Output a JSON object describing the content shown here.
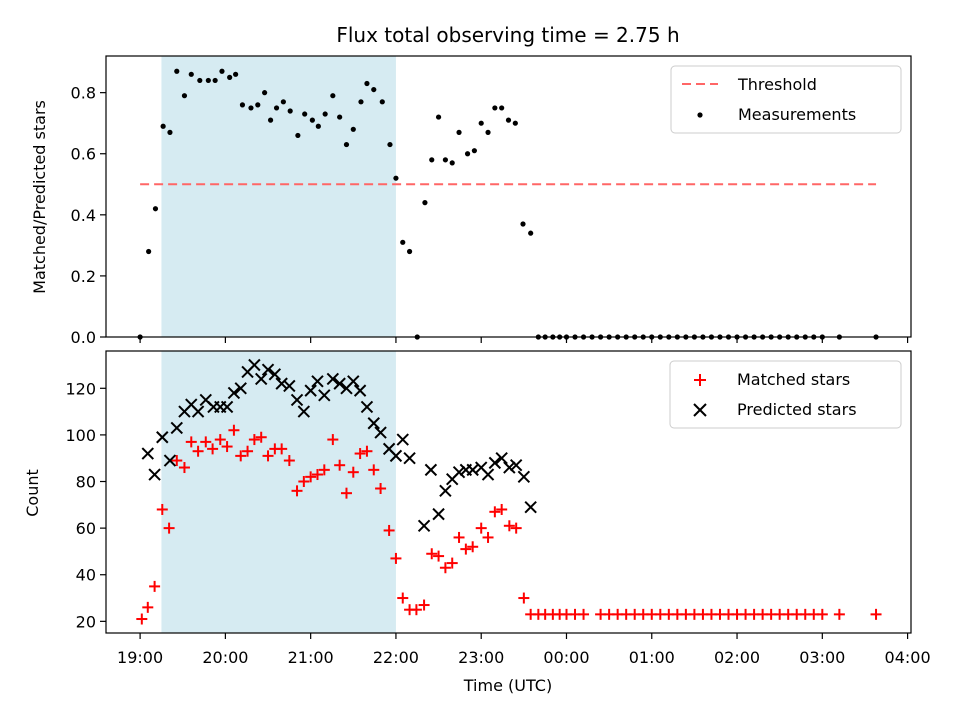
{
  "chart_data": [
    {
      "type": "scatter",
      "title": "Flux total observing time = 2.75 h",
      "ylabel": "Matched/Predicted stars",
      "xlabel": "",
      "ylim": [
        0,
        0.92
      ],
      "yticks": [
        "0.0",
        "0.2",
        "0.4",
        "0.6",
        "0.8"
      ],
      "ytick_values": [
        0,
        0.2,
        0.4,
        0.6,
        0.8
      ],
      "shaded_span": {
        "start_hour": 19.25,
        "end_hour": 22.0,
        "color": "#add8e6"
      },
      "threshold": {
        "y": 0.5,
        "x_start": 19.0,
        "x_end": 27.63
      },
      "legend": {
        "placement": "top-right",
        "threshold_label": "Threshold",
        "measurements_label": "Measurements"
      },
      "series": [
        {
          "name": "Measurements",
          "color": "#000000",
          "x": [
            19.0,
            19.1,
            19.18,
            19.27,
            19.35,
            19.43,
            19.52,
            19.6,
            19.7,
            19.8,
            19.88,
            19.96,
            20.05,
            20.12,
            20.2,
            20.3,
            20.38,
            20.46,
            20.53,
            20.6,
            20.68,
            20.76,
            20.85,
            20.93,
            21.02,
            21.09,
            21.17,
            21.26,
            21.34,
            21.42,
            21.5,
            21.59,
            21.66,
            21.74,
            21.84,
            21.93,
            22.0,
            22.08,
            22.16,
            22.25,
            22.34,
            22.42,
            22.5,
            22.58,
            22.66,
            22.74,
            22.84,
            22.92,
            23.0,
            23.08,
            23.16,
            23.24,
            23.32,
            23.4,
            23.49,
            23.58,
            23.67,
            23.75,
            23.84,
            23.92,
            24.0,
            24.1,
            24.2,
            24.3,
            24.4,
            24.5,
            24.6,
            24.7,
            24.8,
            24.9,
            25.0,
            25.1,
            25.2,
            25.3,
            25.4,
            25.5,
            25.6,
            25.7,
            25.8,
            25.9,
            26.0,
            26.1,
            26.2,
            26.3,
            26.4,
            26.5,
            26.6,
            26.7,
            26.8,
            26.9,
            27.0,
            27.2,
            27.63
          ],
          "y": [
            0.0,
            0.28,
            0.42,
            0.69,
            0.67,
            0.87,
            0.79,
            0.86,
            0.84,
            0.84,
            0.84,
            0.87,
            0.85,
            0.86,
            0.76,
            0.75,
            0.76,
            0.8,
            0.71,
            0.75,
            0.77,
            0.74,
            0.66,
            0.73,
            0.71,
            0.69,
            0.73,
            0.79,
            0.72,
            0.63,
            0.68,
            0.77,
            0.83,
            0.81,
            0.77,
            0.63,
            0.52,
            0.31,
            0.28,
            0.0,
            0.44,
            0.58,
            0.72,
            0.58,
            0.57,
            0.67,
            0.6,
            0.61,
            0.7,
            0.67,
            0.75,
            0.75,
            0.71,
            0.7,
            0.37,
            0.34,
            0.0,
            0.0,
            0.0,
            0.0,
            0.0,
            0.0,
            0.0,
            0.0,
            0.0,
            0.0,
            0.0,
            0.0,
            0.0,
            0.0,
            0.0,
            0.0,
            0.0,
            0.0,
            0.0,
            0.0,
            0.0,
            0.0,
            0.0,
            0.0,
            0.0,
            0.0,
            0.0,
            0.0,
            0.0,
            0.0,
            0.0,
            0.0,
            0.0,
            0.0,
            0.0,
            0.0,
            0.0
          ]
        }
      ]
    },
    {
      "type": "scatter",
      "title": "",
      "ylabel": "Count",
      "xlabel": "Time (UTC)",
      "ylim": [
        15,
        136
      ],
      "yticks": [
        "20",
        "40",
        "60",
        "80",
        "100",
        "120"
      ],
      "ytick_values": [
        20,
        40,
        60,
        80,
        100,
        120
      ],
      "xlim_hours": [
        18.6,
        28.04
      ],
      "xticks": [
        "19:00",
        "20:00",
        "21:00",
        "22:00",
        "23:00",
        "00:00",
        "01:00",
        "02:00",
        "03:00",
        "04:00"
      ],
      "xtick_hours": [
        19,
        20,
        21,
        22,
        23,
        24,
        25,
        26,
        27,
        28
      ],
      "shaded_span": {
        "start_hour": 19.25,
        "end_hour": 22.0,
        "color": "#add8e6"
      },
      "legend": {
        "placement": "top-right",
        "matched_label": "Matched stars",
        "predicted_label": "Predicted stars"
      },
      "series": [
        {
          "name": "Matched stars",
          "marker": "plus",
          "color": "#ff0000",
          "x": [
            19.02,
            19.09,
            19.17,
            19.26,
            19.34,
            19.43,
            19.52,
            19.6,
            19.68,
            19.77,
            19.85,
            19.94,
            20.02,
            20.1,
            20.18,
            20.26,
            20.34,
            20.42,
            20.5,
            20.58,
            20.66,
            20.75,
            20.84,
            20.92,
            21.0,
            21.08,
            21.16,
            21.26,
            21.34,
            21.42,
            21.5,
            21.58,
            21.66,
            21.74,
            21.82,
            21.92,
            22.0,
            22.08,
            22.16,
            22.24,
            22.33,
            22.42,
            22.5,
            22.58,
            22.66,
            22.74,
            22.82,
            22.9,
            23.0,
            23.08,
            23.16,
            23.24,
            23.33,
            23.41,
            23.5,
            23.58,
            23.67,
            23.75,
            23.84,
            23.92,
            24.0,
            24.1,
            24.2,
            24.4,
            24.5,
            24.6,
            24.7,
            24.8,
            24.9,
            25.0,
            25.1,
            25.2,
            25.3,
            25.4,
            25.5,
            25.6,
            25.7,
            25.8,
            25.9,
            26.0,
            26.1,
            26.2,
            26.3,
            26.4,
            26.5,
            26.6,
            26.7,
            26.8,
            26.9,
            27.0,
            27.2,
            27.63
          ],
          "y": [
            21,
            26,
            35,
            68,
            60,
            89,
            86,
            97,
            93,
            97,
            94,
            98,
            95,
            102,
            91,
            93,
            98,
            99,
            91,
            94,
            94,
            89,
            76,
            80,
            82,
            83,
            85,
            98,
            87,
            75,
            84,
            92,
            93,
            85,
            77,
            59,
            47,
            30,
            25,
            25,
            27,
            49,
            48,
            43,
            45,
            56,
            51,
            52,
            60,
            56,
            67,
            68,
            61,
            60,
            30,
            23,
            23,
            23,
            23,
            23,
            23,
            23,
            23,
            23,
            23,
            23,
            23,
            23,
            23,
            23,
            23,
            23,
            23,
            23,
            23,
            23,
            23,
            23,
            23,
            23,
            23,
            23,
            23,
            23,
            23,
            23,
            23,
            23,
            23,
            23,
            23,
            23
          ]
        },
        {
          "name": "Predicted stars",
          "marker": "x",
          "color": "#000000",
          "x": [
            19.09,
            19.17,
            19.26,
            19.35,
            19.43,
            19.52,
            19.6,
            19.68,
            19.77,
            19.86,
            19.94,
            20.02,
            20.1,
            20.18,
            20.26,
            20.34,
            20.42,
            20.5,
            20.58,
            20.66,
            20.75,
            20.84,
            20.92,
            21.0,
            21.08,
            21.16,
            21.26,
            21.34,
            21.42,
            21.5,
            21.58,
            21.66,
            21.74,
            21.82,
            21.92,
            22.0,
            22.08,
            22.16,
            22.33,
            22.41,
            22.5,
            22.58,
            22.66,
            22.74,
            22.82,
            22.9,
            23.0,
            23.08,
            23.16,
            23.24,
            23.33,
            23.41,
            23.5,
            23.58
          ],
          "y": [
            92,
            83,
            99,
            89,
            103,
            110,
            113,
            110,
            115,
            112,
            112,
            112,
            118,
            120,
            127,
            130,
            124,
            128,
            126,
            122,
            121,
            115,
            110,
            119,
            123,
            117,
            124,
            122,
            120,
            123,
            119,
            112,
            105,
            101,
            94,
            91,
            98,
            90,
            61,
            85,
            66,
            76,
            81,
            84,
            85,
            85,
            86,
            83,
            88,
            90,
            86,
            87,
            82,
            69
          ]
        }
      ]
    }
  ]
}
